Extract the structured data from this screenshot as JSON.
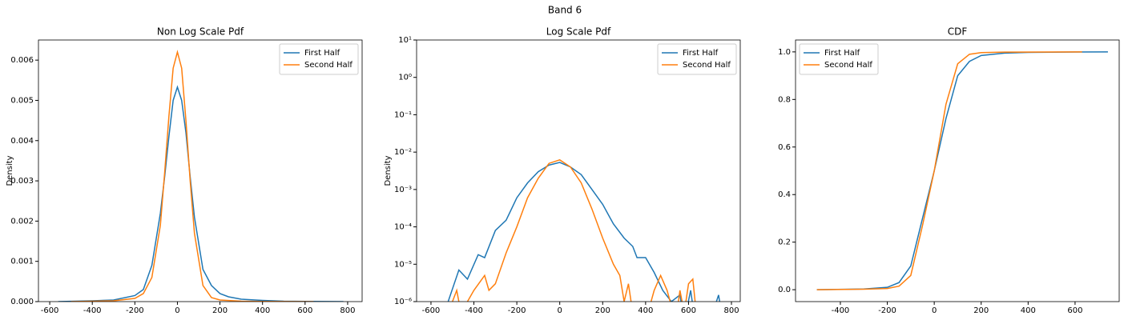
{
  "title": "Band 6",
  "chart_data": [
    {
      "type": "line",
      "title": "Non Log Scale Pdf",
      "ylabel": "Density",
      "legend": "upper right",
      "xlim": [
        -653,
        868
      ],
      "ylim": [
        0,
        0.0065
      ],
      "xticks": [
        -600,
        -400,
        -200,
        0,
        200,
        400,
        600,
        800
      ],
      "yticks": [
        {
          "value": 0,
          "label": "0.000"
        },
        {
          "value": 0.001,
          "label": "0.001"
        },
        {
          "value": 0.002,
          "label": "0.002"
        },
        {
          "value": 0.003,
          "label": "0.003"
        },
        {
          "value": 0.004,
          "label": "0.004"
        },
        {
          "value": 0.005,
          "label": "0.005"
        },
        {
          "value": 0.006,
          "label": "0.006"
        }
      ],
      "series": [
        {
          "name": "First Half",
          "color": "#1f77b4",
          "x": [
            -560,
            -400,
            -300,
            -200,
            -160,
            -120,
            -80,
            -60,
            -40,
            -20,
            0,
            20,
            40,
            60,
            80,
            120,
            160,
            200,
            240,
            300,
            400,
            500,
            600,
            780
          ],
          "values": [
            0,
            2e-05,
            4e-05,
            0.00015,
            0.0003,
            0.0009,
            0.0022,
            0.0031,
            0.0041,
            0.005,
            0.00533,
            0.005,
            0.0042,
            0.0031,
            0.0021,
            0.0008,
            0.0004,
            0.0002,
            0.00012,
            6e-05,
            3e-05,
            1e-05,
            5e-06,
            0
          ]
        },
        {
          "name": "Second Half",
          "color": "#ff7f0e",
          "x": [
            -500,
            -400,
            -300,
            -200,
            -160,
            -120,
            -80,
            -60,
            -40,
            -20,
            0,
            20,
            40,
            60,
            80,
            120,
            160,
            200,
            300,
            400,
            640
          ],
          "values": [
            0,
            1e-05,
            2e-05,
            8e-05,
            0.0002,
            0.0006,
            0.0019,
            0.0032,
            0.0046,
            0.0058,
            0.0062,
            0.0058,
            0.0045,
            0.003,
            0.0017,
            0.0004,
            0.0001,
            4e-05,
            1e-05,
            5e-06,
            0
          ]
        }
      ]
    },
    {
      "type": "line",
      "title": "Log Scale Pdf",
      "ylabel": "Density",
      "legend": "upper right",
      "yscale": "log",
      "xlim": [
        -667,
        841
      ],
      "ylim": [
        1e-06,
        10
      ],
      "xticks": [
        -600,
        -400,
        -200,
        0,
        200,
        400,
        600,
        800
      ],
      "yticks": [
        {
          "value": 1e-06,
          "label": "10⁻⁶"
        },
        {
          "value": 1e-05,
          "label": "10⁻⁵"
        },
        {
          "value": 0.0001,
          "label": "10⁻⁴"
        },
        {
          "value": 0.001,
          "label": "10⁻³"
        },
        {
          "value": 0.01,
          "label": "10⁻²"
        },
        {
          "value": 0.1,
          "label": "10⁻¹"
        },
        {
          "value": 1,
          "label": "10⁰"
        },
        {
          "value": 10,
          "label": "10¹"
        }
      ],
      "series": [
        {
          "name": "First Half",
          "color": "#1f77b4",
          "x": [
            -520,
            -470,
            -430,
            -380,
            -350,
            -300,
            -250,
            -200,
            -150,
            -100,
            -50,
            0,
            50,
            100,
            150,
            200,
            250,
            300,
            340,
            360,
            400,
            440,
            480,
            520,
            560,
            580,
            610,
            630,
            700,
            740,
            760
          ],
          "values": [
            1e-06,
            7e-06,
            4e-06,
            1.8e-05,
            1.5e-05,
            8e-05,
            0.00015,
            0.0006,
            0.0015,
            0.003,
            0.0045,
            0.0053,
            0.004,
            0.0025,
            0.001,
            0.0004,
            0.00012,
            5e-05,
            3e-05,
            1.5e-05,
            1.5e-05,
            6e-06,
            2e-06,
            1e-06,
            1.5e-06,
            3e-07,
            2e-06,
            3e-07,
            3e-07,
            1.5e-06,
            3e-07
          ]
        },
        {
          "name": "Second Half",
          "color": "#ff7f0e",
          "x": [
            -500,
            -480,
            -460,
            -400,
            -350,
            -330,
            -300,
            -250,
            -200,
            -150,
            -100,
            -50,
            0,
            50,
            100,
            150,
            200,
            250,
            280,
            300,
            320,
            340,
            400,
            440,
            470,
            500,
            540,
            560,
            580,
            600,
            620,
            640
          ],
          "values": [
            1e-06,
            2e-06,
            5e-07,
            2e-06,
            5e-06,
            2e-06,
            3e-06,
            2e-05,
            0.0001,
            0.0006,
            0.002,
            0.005,
            0.0062,
            0.004,
            0.0015,
            0.0003,
            5e-05,
            1e-05,
            5e-06,
            1e-06,
            3e-06,
            5e-07,
            3e-07,
            2e-06,
            5e-06,
            2e-06,
            3e-07,
            2e-06,
            5e-07,
            3e-06,
            4e-06,
            3e-07
          ]
        }
      ]
    },
    {
      "type": "line",
      "title": "CDF",
      "legend": "upper left",
      "xlim": [
        -591,
        788
      ],
      "ylim": [
        -0.05,
        1.05
      ],
      "xticks": [
        -400,
        -200,
        0,
        200,
        400,
        600
      ],
      "yticks": [
        {
          "value": 0,
          "label": "0.0"
        },
        0.2,
        0.4,
        0.6,
        0.8,
        {
          "value": 1,
          "label": "1.0"
        }
      ],
      "series": [
        {
          "name": "First Half",
          "color": "#1f77b4",
          "x": [
            -500,
            -300,
            -200,
            -150,
            -100,
            -50,
            0,
            50,
            100,
            150,
            200,
            300,
            400,
            600,
            740
          ],
          "values": [
            0,
            0.003,
            0.01,
            0.03,
            0.1,
            0.3,
            0.5,
            0.72,
            0.9,
            0.96,
            0.985,
            0.995,
            0.998,
            0.9995,
            1
          ]
        },
        {
          "name": "Second Half",
          "color": "#ff7f0e",
          "x": [
            -500,
            -300,
            -200,
            -150,
            -100,
            -50,
            0,
            50,
            100,
            150,
            200,
            300,
            630
          ],
          "values": [
            0,
            0.002,
            0.005,
            0.015,
            0.06,
            0.27,
            0.5,
            0.78,
            0.95,
            0.99,
            0.997,
            0.999,
            1
          ]
        }
      ]
    }
  ]
}
